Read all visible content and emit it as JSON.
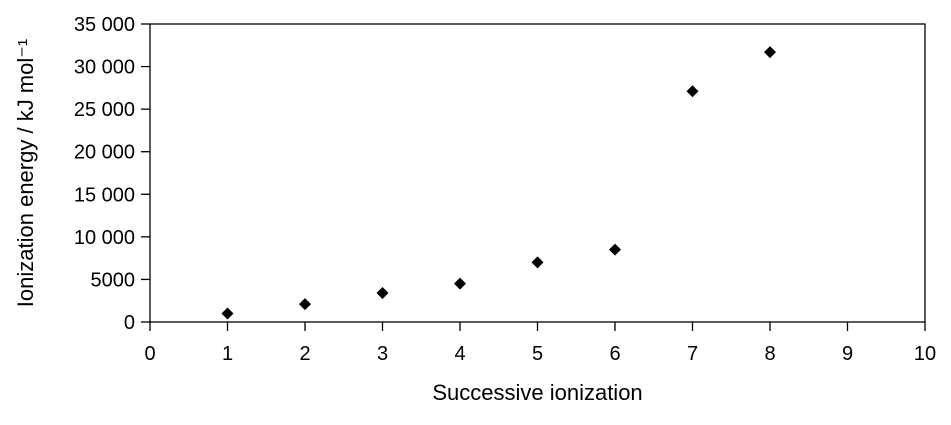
{
  "chart_data": {
    "type": "scatter",
    "title": "",
    "xlabel": "Successive ionization",
    "ylabel": "Ionization energy / kJ mol⁻¹",
    "xlim": [
      0,
      10
    ],
    "ylim": [
      0,
      35000
    ],
    "x_ticks": [
      0,
      1,
      2,
      3,
      4,
      5,
      6,
      7,
      8,
      9,
      10
    ],
    "x_tick_labels": [
      "0",
      "1",
      "2",
      "3",
      "4",
      "5",
      "6",
      "7",
      "8",
      "9",
      "10"
    ],
    "y_ticks": [
      0,
      5000,
      10000,
      15000,
      20000,
      25000,
      30000,
      35000
    ],
    "y_tick_labels": [
      "0",
      "5000",
      "10 000",
      "15 000",
      "20 000",
      "25 000",
      "30 000",
      "35 000"
    ],
    "grid": false,
    "legend": "none",
    "marker": "diamond",
    "marker_color": "#000000",
    "series": [
      {
        "x": [
          1,
          2,
          3,
          4,
          5,
          6,
          7,
          8
        ],
        "y": [
          1000,
          2100,
          3400,
          4500,
          7000,
          8500,
          27100,
          31700
        ]
      }
    ]
  }
}
